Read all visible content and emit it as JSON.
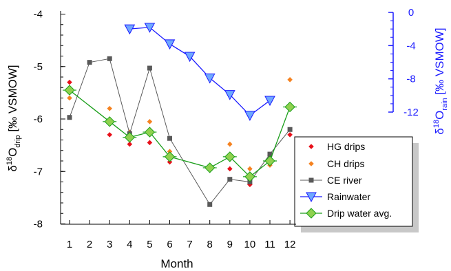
{
  "chart_data": {
    "type": "line",
    "x_label": "Month",
    "y_left_label": {
      "main": "δ",
      "sup": "18",
      "mid": "O",
      "sub": "drip",
      "rest": " [‰ VSMOW]"
    },
    "y_right_label": {
      "main": "δ",
      "sup": "18",
      "mid": "O",
      "sub": "rain",
      "rest": " [‰ VSMOW]"
    },
    "x_range": [
      0.5,
      12.5
    ],
    "y_left_range": [
      -8,
      -3.9
    ],
    "y_right_range": [
      -16,
      0
    ],
    "x_ticks": [
      "1",
      "2",
      "3",
      "4",
      "5",
      "6",
      "7",
      "8",
      "9",
      "10",
      "11",
      "12"
    ],
    "y_left_ticks": [
      "-8",
      "-7",
      "-6",
      "-5",
      "-4"
    ],
    "y_right_ticks": [
      "-12",
      "-8",
      "-4",
      "0"
    ],
    "series": [
      {
        "name": "HG drips",
        "axis": "left",
        "style": "diamond-points",
        "color": "#e8101a",
        "points": [
          [
            1,
            -5.3
          ],
          [
            3,
            -6.3
          ],
          [
            4,
            -6.48
          ],
          [
            5,
            -6.45
          ],
          [
            6,
            -6.82
          ],
          [
            8,
            -6.95
          ],
          [
            9,
            -6.95
          ],
          [
            10,
            -7.25
          ],
          [
            11,
            -6.7
          ],
          [
            12,
            -6.3
          ]
        ]
      },
      {
        "name": "CH drips",
        "axis": "left",
        "style": "diamond-points",
        "color": "#f58220",
        "points": [
          [
            1,
            -5.6
          ],
          [
            3,
            -5.8
          ],
          [
            4,
            -6.25
          ],
          [
            5,
            -6.05
          ],
          [
            6,
            -6.62
          ],
          [
            8,
            -6.95
          ],
          [
            9,
            -6.48
          ],
          [
            10,
            -6.95
          ],
          [
            11,
            -6.88
          ],
          [
            12,
            -5.25
          ]
        ]
      },
      {
        "name": "CE river",
        "axis": "left",
        "style": "line-square",
        "color": "#595959",
        "points": [
          [
            1,
            -5.97
          ],
          [
            2,
            -4.92
          ],
          [
            3,
            -4.85
          ],
          [
            4,
            -6.28
          ],
          [
            5,
            -5.03
          ],
          [
            6,
            -6.37
          ],
          [
            8,
            -7.63
          ],
          [
            9,
            -7.15
          ],
          [
            10,
            -7.2
          ],
          [
            11,
            -6.67
          ],
          [
            12,
            -6.2
          ]
        ]
      },
      {
        "name": "Rainwater",
        "axis": "right",
        "style": "line-triangle",
        "color": "#1a1aff",
        "fill": "#6fa8ff",
        "points": [
          [
            4,
            -2.0
          ],
          [
            5,
            -1.8
          ],
          [
            6,
            -3.8
          ],
          [
            7,
            -5.3
          ],
          [
            8,
            -7.9
          ],
          [
            9,
            -9.9
          ],
          [
            10,
            -12.4
          ],
          [
            11,
            -10.6
          ]
        ]
      },
      {
        "name": "Drip water avg.",
        "axis": "left",
        "style": "line-diamond",
        "color": "#1a9e1a",
        "fill": "#8fd14f",
        "points": [
          [
            1,
            -5.45
          ],
          [
            3,
            -6.05
          ],
          [
            4,
            -6.35
          ],
          [
            5,
            -6.25
          ],
          [
            6,
            -6.72
          ],
          [
            8,
            -6.93
          ],
          [
            9,
            -6.72
          ],
          [
            10,
            -7.1
          ],
          [
            11,
            -6.8
          ],
          [
            12,
            -5.77
          ]
        ]
      }
    ],
    "legend_position": "bottom-right",
    "grid": false
  }
}
